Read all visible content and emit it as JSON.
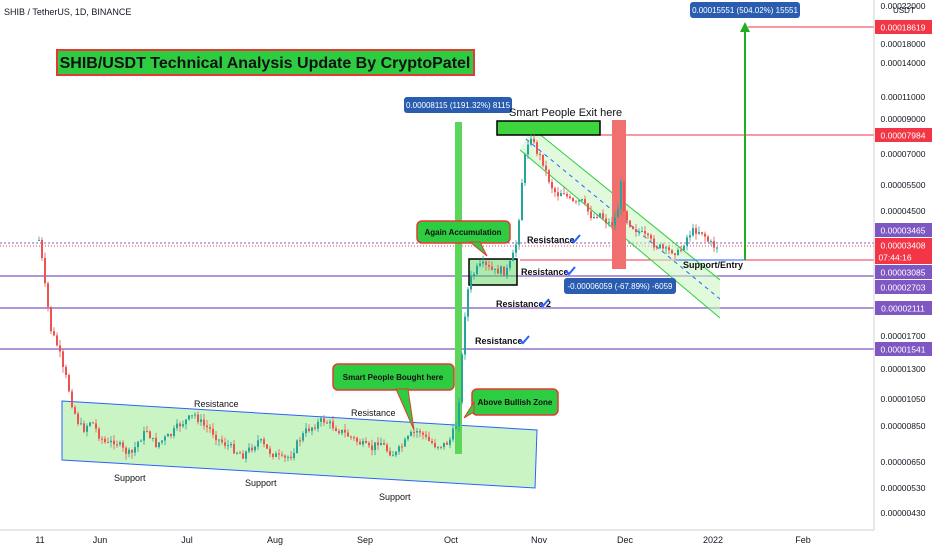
{
  "symbol_header": "SHIB / TetherUS, 1D, BINANCE",
  "axis_currency": "USDT",
  "title_banner": "SHIB/USDT Technical Analysis Update By CryptoPatel",
  "colors": {
    "up": "#26a69a",
    "down": "#ef5350",
    "channel_fill": "#b9f0b0",
    "channel_stroke": "#2962ff",
    "purple_line": "#7e57c2",
    "red_line": "#f23645",
    "green_bar": "#5bd65b",
    "red_bar": "#f07070",
    "callout_fill": "#2ecc40",
    "badge_blue": "#2a5db0"
  },
  "chart_data": {
    "type": "candlestick",
    "x_ticks": [
      "11",
      "Jun",
      "Jul",
      "Aug",
      "Sep",
      "Oct",
      "Nov",
      "Dec",
      "2022",
      "Feb"
    ],
    "y_ticks": [
      "0.00022000",
      "0.00018000",
      "0.00014000",
      "0.00011000",
      "0.00009000",
      "0.00007000",
      "0.00005500",
      "0.00004500",
      "0.00002700",
      "0.00001700",
      "0.00001300",
      "0.00001050",
      "0.00000850",
      "0.00000650",
      "0.00000530",
      "0.00000430"
    ],
    "price_levels": [
      {
        "label": "0.00018619",
        "type": "target",
        "color": "#f23645"
      },
      {
        "label": "0.00007984",
        "type": "resistance",
        "color": "#f23645"
      },
      {
        "label": "0.00003465",
        "type": "level",
        "color": "#7e57c2"
      },
      {
        "label": "0.00003408",
        "type": "current",
        "color": "#f23645"
      },
      {
        "label": "07:44:16",
        "type": "countdown",
        "color": "#f23645"
      },
      {
        "label": "0.00003085",
        "type": "level",
        "color": "#7e57c2"
      },
      {
        "label": "0.00002703",
        "type": "level",
        "color": "#7e57c2"
      },
      {
        "label": "0.00002111",
        "type": "level",
        "color": "#7e57c2"
      },
      {
        "label": "0.00001541",
        "type": "level",
        "color": "#7e57c2"
      }
    ],
    "measurements": [
      "0.00008115 (1191.32%) 8115",
      "0.00015551 (504.02%) 15551",
      "-0.00006059 (-67.89%) -6059"
    ],
    "annotations": {
      "smart_exit": "Smart People Exit here",
      "again_accumulation": "Again Accumulation",
      "smart_bought": "Smart People Bought here",
      "above_bullish": "Above Bullish Zone",
      "resistance": "Resistance",
      "support": "Support",
      "resistance_check": "Resistance",
      "resistance_2": "Resistance 2",
      "support_entry": "Support/Entry"
    }
  }
}
